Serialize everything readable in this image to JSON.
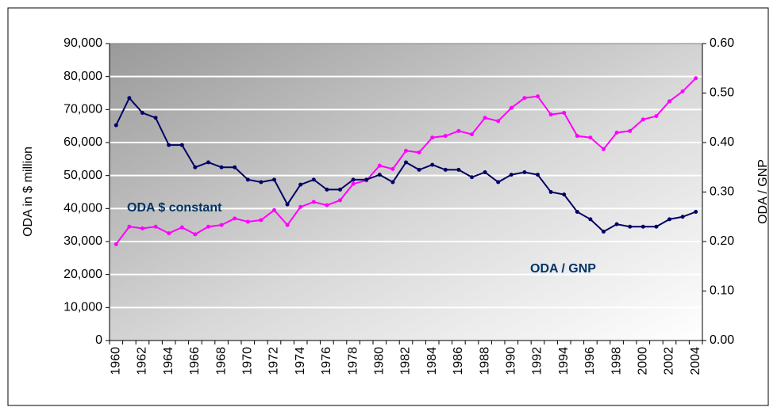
{
  "chart_data": {
    "type": "line",
    "categories": [
      "1960",
      null,
      "1962",
      null,
      "1964",
      null,
      "1966",
      null,
      "1968",
      null,
      "1970",
      null,
      "1972",
      null,
      "1974",
      null,
      "1976",
      null,
      "1978",
      null,
      "1980",
      null,
      "1982",
      null,
      "1984",
      null,
      "1986",
      null,
      "1988",
      null,
      "1990",
      null,
      "1992",
      null,
      "1994",
      null,
      "1996",
      null,
      "1998",
      null,
      "2000",
      null,
      "2002",
      null,
      "2004"
    ],
    "series": [
      {
        "name": "ODA $ constant",
        "color": "#ff00ff",
        "values": [
          29200,
          34500,
          34000,
          34500,
          32500,
          34300,
          32200,
          34500,
          35000,
          37000,
          36000,
          36500,
          39500,
          35000,
          40500,
          42000,
          41000,
          42500,
          47500,
          48500,
          53000,
          52000,
          57500,
          57000,
          61500,
          62000,
          63500,
          62500,
          67500,
          66500,
          70500,
          73500,
          74000,
          68500,
          69000,
          62000,
          61500,
          58000,
          63000,
          63500,
          67000,
          68000,
          72500,
          75500,
          79500
        ]
      },
      {
        "name": "ODA / GNP",
        "color": "#000066",
        "axis": "y2",
        "values": [
          0.435,
          0.49,
          0.46,
          0.45,
          0.395,
          0.395,
          0.35,
          0.36,
          0.35,
          0.35,
          0.325,
          0.32,
          0.325,
          0.275,
          0.315,
          0.325,
          0.305,
          0.305,
          0.325,
          0.325,
          0.335,
          0.32,
          0.36,
          0.345,
          0.355,
          0.345,
          0.345,
          0.33,
          0.34,
          0.32,
          0.335,
          0.34,
          0.335,
          0.3,
          0.295,
          0.26,
          0.245,
          0.22,
          0.235,
          0.23,
          0.23,
          0.23,
          0.245,
          0.25,
          0.26
        ]
      }
    ],
    "y_label": "ODA in $ million",
    "y2_label": "ODA / GNP",
    "ylim": [
      0,
      90000
    ],
    "yticks": [
      0,
      {
        "value": 10000,
        "label": "10,000"
      },
      {
        "value": 20000,
        "label": "20,000"
      },
      {
        "value": 30000,
        "label": "30,000"
      },
      {
        "value": 40000,
        "label": "40,000"
      },
      {
        "value": 50000,
        "label": "50,000"
      },
      {
        "value": 60000,
        "label": "60,000"
      },
      {
        "value": 70000,
        "label": "70,000"
      },
      {
        "value": 80000,
        "label": "80,000"
      },
      {
        "value": 90000,
        "label": "90,000"
      }
    ],
    "y2lim": [
      0,
      0.6
    ],
    "y2ticks": [
      {
        "value": 0,
        "label": "0.00"
      },
      {
        "value": 0.1,
        "label": "0.10"
      },
      {
        "value": 0.2,
        "label": "0.20"
      },
      {
        "value": 0.3,
        "label": "0.30"
      },
      {
        "value": 0.4,
        "label": "0.40"
      },
      {
        "value": 0.5,
        "label": "0.50"
      },
      {
        "value": 0.6,
        "label": "0.60"
      }
    ],
    "grid": true,
    "annotations": [
      "ODA $ constant",
      "ODA / GNP"
    ]
  }
}
